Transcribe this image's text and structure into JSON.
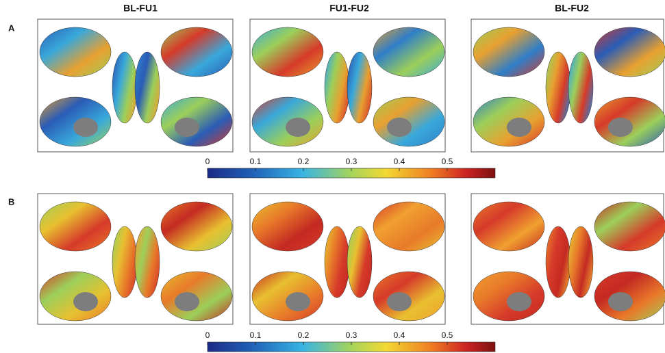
{
  "column_titles": [
    "BL-FU1",
    "FU1-FU2",
    "BL-FU2"
  ],
  "rows": [
    {
      "label": "A",
      "colorbar": {
        "lim": [
          0,
          0.6
        ],
        "ticks": [
          0,
          0.1,
          0.2,
          0.3,
          0.4,
          0.5
        ]
      }
    },
    {
      "label": "B",
      "colorbar": {
        "lim": [
          0,
          0.6
        ],
        "ticks": [
          0,
          0.1,
          0.2,
          0.3,
          0.4,
          0.5
        ]
      }
    }
  ]
}
